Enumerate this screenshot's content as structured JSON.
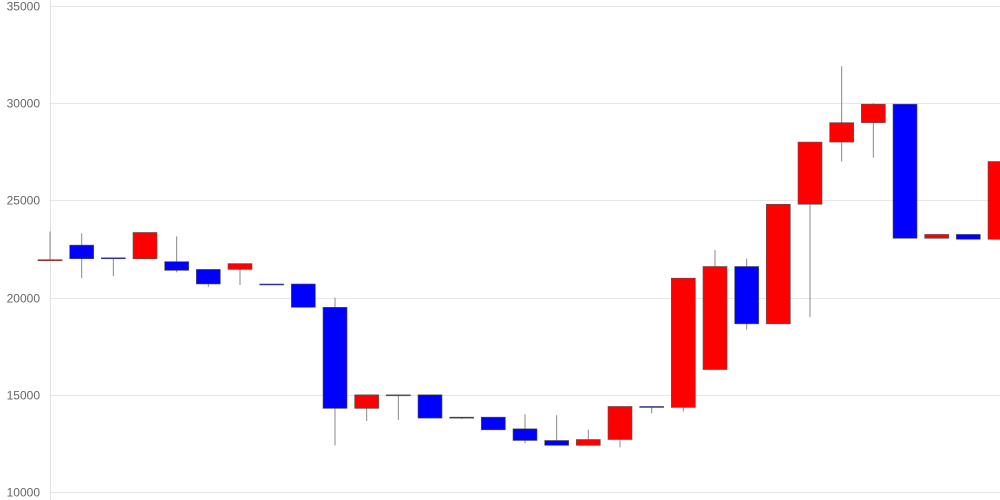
{
  "chart_data": {
    "type": "candlestick",
    "title": "",
    "xlabel": "",
    "ylabel": "",
    "ylim": [
      10000,
      35000
    ],
    "yticks": [
      "10000",
      "15000",
      "20000",
      "25000",
      "30000",
      "35000"
    ],
    "grid": true,
    "colors": {
      "up": "#ff0000",
      "down": "#0000ff",
      "wick": "#888888",
      "grid": "#e6e6e6",
      "axis": "#666666"
    },
    "candles": [
      {
        "open": 21900,
        "high": 23400,
        "low": 21900,
        "close": 21950
      },
      {
        "open": 22700,
        "high": 23300,
        "low": 21000,
        "close": 22000
      },
      {
        "open": 22050,
        "high": 22050,
        "low": 21100,
        "close": 22000
      },
      {
        "open": 22000,
        "high": 23350,
        "low": 22000,
        "close": 23350
      },
      {
        "open": 21850,
        "high": 23150,
        "low": 21300,
        "close": 21400
      },
      {
        "open": 21450,
        "high": 21450,
        "low": 20550,
        "close": 20700
      },
      {
        "open": 21450,
        "high": 21750,
        "low": 20650,
        "close": 21750
      },
      {
        "open": 20700,
        "high": 20700,
        "low": 20650,
        "close": 20650
      },
      {
        "open": 20700,
        "high": 20700,
        "low": 19500,
        "close": 19500
      },
      {
        "open": 19500,
        "high": 20000,
        "low": 12400,
        "close": 14300
      },
      {
        "open": 14300,
        "high": 15000,
        "low": 13650,
        "close": 15000
      },
      {
        "open": 15000,
        "high": 15000,
        "low": 13700,
        "close": 15000
      },
      {
        "open": 15000,
        "high": 15000,
        "low": 13800,
        "close": 13800
      },
      {
        "open": 13850,
        "high": 13850,
        "low": 13750,
        "close": 13800
      },
      {
        "open": 13850,
        "high": 13850,
        "low": 13200,
        "close": 13200
      },
      {
        "open": 13250,
        "high": 14000,
        "low": 12500,
        "close": 12650
      },
      {
        "open": 12650,
        "high": 13950,
        "low": 12400,
        "close": 12400
      },
      {
        "open": 12400,
        "high": 13200,
        "low": 12400,
        "close": 12700
      },
      {
        "open": 12700,
        "high": 14400,
        "low": 12300,
        "close": 14400
      },
      {
        "open": 14400,
        "high": 14400,
        "low": 14050,
        "close": 14350
      },
      {
        "open": 14350,
        "high": 21000,
        "low": 14150,
        "close": 21000
      },
      {
        "open": 16300,
        "high": 22450,
        "low": 16300,
        "close": 21600
      },
      {
        "open": 21600,
        "high": 22000,
        "low": 18350,
        "close": 18650
      },
      {
        "open": 18650,
        "high": 24800,
        "low": 18650,
        "close": 24800
      },
      {
        "open": 24800,
        "high": 28000,
        "low": 19000,
        "close": 28000
      },
      {
        "open": 28000,
        "high": 31900,
        "low": 27000,
        "close": 29000
      },
      {
        "open": 29000,
        "high": 30000,
        "low": 27200,
        "close": 29950
      },
      {
        "open": 29950,
        "high": 29950,
        "low": 23050,
        "close": 23050
      },
      {
        "open": 23050,
        "high": 23250,
        "low": 23050,
        "close": 23250
      },
      {
        "open": 23250,
        "high": 23250,
        "low": 23000,
        "close": 23000
      },
      {
        "open": 23000,
        "high": 27000,
        "low": 23000,
        "close": 27000
      }
    ]
  }
}
